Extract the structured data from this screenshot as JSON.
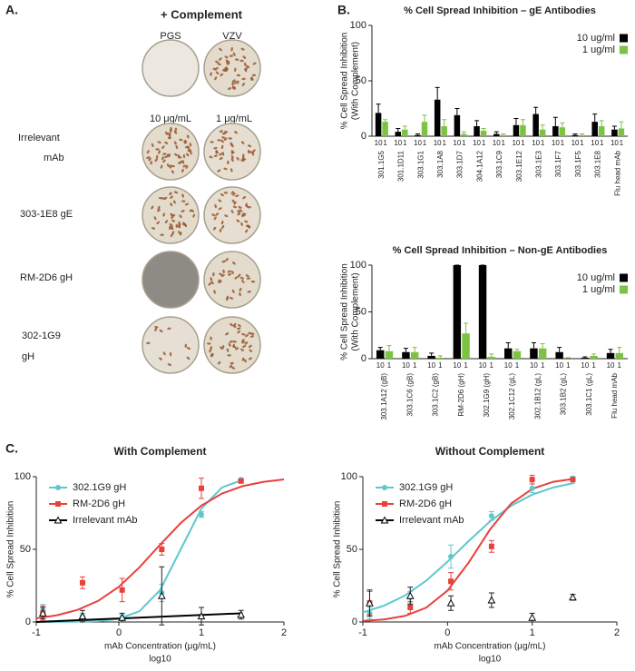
{
  "panel_labels": [
    "A.",
    "B.",
    "C."
  ],
  "panel_a": {
    "title": "+ Complement",
    "columns": [
      "PGS",
      "VZV"
    ],
    "doses": [
      "10 μg/mL",
      "1 μg/mL"
    ],
    "rows": [
      [
        "Irrelevant",
        "mAb"
      ],
      [
        "303-1E8 gE"
      ],
      [
        "RM-2D6 gH"
      ],
      [
        "302-1G9",
        "gH"
      ]
    ]
  },
  "chart_data": [
    {
      "type": "bar",
      "title": "% Cell Spread Inhibition – gE Antibodies",
      "ylabel": [
        "% Cell Spread Inhibition",
        "(With Complement)"
      ],
      "categories": [
        "301.1G5",
        "301.1D11",
        "303.1G1",
        "303.1A8",
        "303.1D7",
        "304.1A12",
        "303.1C9",
        "303.1E12",
        "303.1E3",
        "303.1F7",
        "303.1F5",
        "303.1E8",
        "Flu head mAb"
      ],
      "bar_labels": [
        "10",
        "1"
      ],
      "series": [
        {
          "name": "10 ug/ml",
          "color": "#000000",
          "values": [
            21,
            4,
            1,
            33,
            19,
            9,
            2,
            10,
            20,
            9,
            1,
            13,
            6
          ],
          "errors": [
            8,
            3,
            1,
            11,
            6,
            5,
            2,
            6,
            6,
            8,
            1,
            7,
            3
          ]
        },
        {
          "name": "1 ug/ml",
          "color": "#7dc242",
          "values": [
            13,
            6,
            13,
            9,
            2,
            5,
            1,
            10,
            6,
            8,
            1,
            9,
            7
          ],
          "errors": [
            2,
            3,
            6,
            6,
            2,
            2,
            1,
            5,
            4,
            4,
            1,
            5,
            6
          ]
        }
      ],
      "ylim": [
        0,
        100
      ],
      "yticks": [
        0,
        50,
        100
      ],
      "legend": "upper right"
    },
    {
      "type": "bar",
      "title": "% Cell Spread Inhibition – Non-gE Antibodies",
      "ylabel": [
        "% Cell Spread Inhibition",
        "(With Complement)"
      ],
      "categories": [
        "303.1A12 (gB)",
        "303.1C6 (gB)",
        "303.1C2 (gB)",
        "RM-2D6 (gH)",
        "302.1G9 (gH)",
        "302.1C12 (gL)",
        "302.1B12 (gL)",
        "303.1B2 (gL)",
        "303.1C1 (gL)",
        "Flu head mAb"
      ],
      "bar_labels": [
        "10",
        "1"
      ],
      "series": [
        {
          "name": "10 ug/ml",
          "color": "#000000",
          "values": [
            9,
            7,
            3,
            100,
            100,
            11,
            11,
            7,
            1,
            6
          ],
          "errors": [
            3,
            4,
            3,
            0,
            0,
            6,
            6,
            5,
            1,
            4
          ]
        },
        {
          "name": "1 ug/ml",
          "color": "#7dc242",
          "values": [
            8,
            7,
            1,
            27,
            2,
            8,
            11,
            0,
            3,
            6
          ],
          "errors": [
            6,
            5,
            2,
            11,
            3,
            2,
            5,
            1,
            2,
            6
          ]
        }
      ],
      "ylim": [
        0,
        100
      ],
      "yticks": [
        0,
        50,
        100
      ],
      "legend": "upper right"
    },
    {
      "type": "scatter",
      "title": "With Complement",
      "xlabel": [
        "mAb Concentration (μg/mL)",
        "log10"
      ],
      "ylabel": "% Cell Spread Inhibition",
      "x": [
        -0.92,
        -0.44,
        0.04,
        0.52,
        1.0,
        1.48
      ],
      "series": [
        {
          "name": "302.1G9 gH",
          "color": "#5ec8cc",
          "marker": "circle",
          "values": [
            8,
            4,
            3,
            20,
            74,
            98
          ],
          "errors": [
            4,
            2,
            2,
            6,
            2,
            1
          ],
          "fit": {
            "x": [
              -1,
              -0.75,
              -0.5,
              -0.25,
              0,
              0.25,
              0.5,
              0.75,
              1,
              1.25,
              1.5
            ],
            "values": [
              0.0,
              0.1,
              0.2,
              0.6,
              2.2,
              7.4,
              22,
              50,
              78,
              92.6,
              97.8
            ]
          }
        },
        {
          "name": "RM-2D6 gH",
          "color": "#e8413c",
          "marker": "square",
          "values": [
            6,
            27,
            22,
            50,
            92,
            97
          ],
          "errors": [
            5,
            4,
            8,
            4,
            7,
            1
          ],
          "fit": {
            "x": [
              -1,
              -0.75,
              -0.5,
              -0.25,
              0,
              0.25,
              0.5,
              0.75,
              1,
              1.25,
              1.5,
              1.75,
              2
            ],
            "values": [
              2.5,
              4.6,
              8.3,
              14.5,
              24.2,
              37.6,
              53.2,
              68.1,
              80.1,
              88.4,
              93.5,
              96.4,
              98.1
            ]
          }
        },
        {
          "name": "Irrelevant mAb",
          "color": "#000000",
          "marker": "open-triangle",
          "values": [
            6,
            4,
            3,
            18,
            4,
            5
          ],
          "errors": [
            4,
            4,
            3,
            20,
            6,
            3
          ],
          "fit": {
            "x": [
              -1,
              1.5
            ],
            "values": [
              0,
              6
            ]
          }
        }
      ],
      "xlim": [
        -1,
        2
      ],
      "xticks": [
        -1,
        0,
        1,
        2
      ],
      "ylim": [
        0,
        100
      ],
      "yticks": [
        0,
        50,
        100
      ],
      "legend": "upper left"
    },
    {
      "type": "scatter",
      "title": "Without Complement",
      "xlabel": [
        "mAb Concentration (μg/mL)",
        "log10"
      ],
      "ylabel": "% Cell Spread Inhibition",
      "x": [
        -0.92,
        -0.44,
        0.04,
        0.52,
        1.0,
        1.48
      ],
      "series": [
        {
          "name": "302.1G9 gH",
          "color": "#5ec8cc",
          "marker": "circle",
          "values": [
            6,
            17,
            45,
            73,
            92,
            99
          ],
          "errors": [
            4,
            4,
            8,
            3,
            3,
            1
          ],
          "fit": {
            "x": [
              -1,
              -0.75,
              -0.5,
              -0.25,
              0,
              0.25,
              0.5,
              0.75,
              1,
              1.25,
              1.5
            ],
            "values": [
              6.6,
              11.2,
              18.3,
              28.5,
              41.5,
              55.7,
              69.1,
              79.9,
              87.6,
              92.6,
              95.7
            ]
          }
        },
        {
          "name": "RM-2D6 gH",
          "color": "#e8413c",
          "marker": "square",
          "values": [
            13,
            10,
            28,
            52,
            98,
            98
          ],
          "errors": [
            8,
            4,
            6,
            4,
            3,
            1
          ],
          "fit": {
            "x": [
              -1,
              -0.75,
              -0.5,
              -0.25,
              0,
              0.25,
              0.5,
              0.75,
              1,
              1.25,
              1.5
            ],
            "values": [
              0.7,
              1.7,
              4.2,
              9.9,
              21.6,
              40.9,
              63.5,
              81.4,
              91.6,
              96.5,
              98.6
            ]
          }
        },
        {
          "name": "Irrelevant mAb",
          "color": "#000000",
          "marker": "open-triangle",
          "values": [
            13,
            18,
            13,
            15,
            3,
            17
          ],
          "errors": [
            9,
            6,
            5,
            5,
            3,
            2
          ]
        }
      ],
      "xlim": [
        -1,
        2
      ],
      "xticks": [
        -1,
        0,
        1,
        2
      ],
      "ylim": [
        0,
        100
      ],
      "yticks": [
        0,
        50,
        100
      ],
      "legend": "upper left"
    }
  ]
}
